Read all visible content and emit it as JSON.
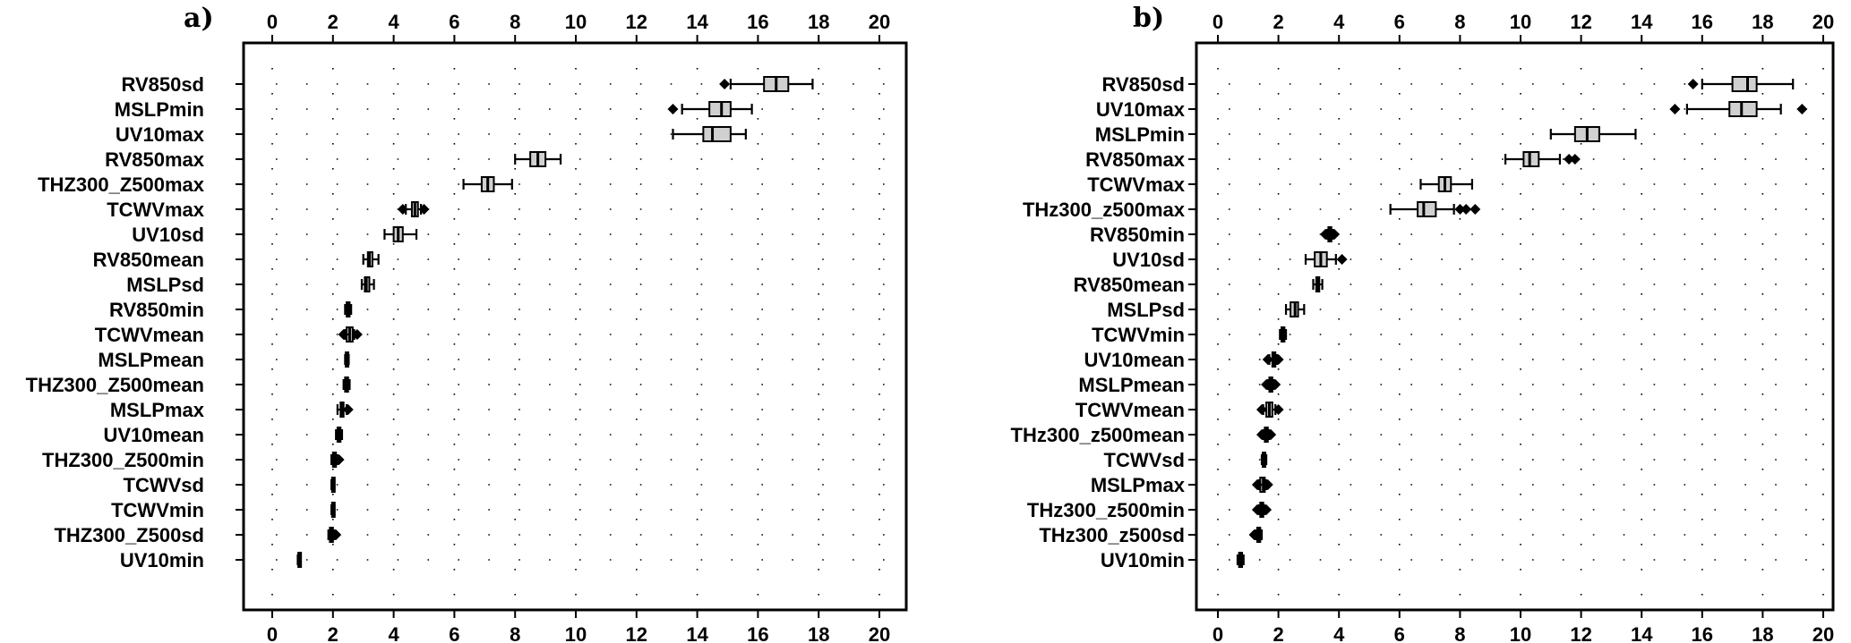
{
  "chart_data": [
    {
      "type": "box",
      "panel_label": "a)",
      "xlim": [
        0,
        20
      ],
      "xticks": [
        "0",
        "2",
        "4",
        "6",
        "8",
        "10",
        "12",
        "14",
        "16",
        "18",
        "20"
      ],
      "grid": "dotted",
      "rows": [
        {
          "label": "RV850sd",
          "box": [
            16.2,
            16.6,
            17.0
          ],
          "whiskers": [
            15.1,
            17.8
          ],
          "outliers": [
            14.9
          ]
        },
        {
          "label": "MSLPmin",
          "box": [
            14.4,
            14.8,
            15.1
          ],
          "whiskers": [
            13.5,
            15.8
          ],
          "outliers": [
            13.2
          ]
        },
        {
          "label": "UV10max",
          "box": [
            14.2,
            14.5,
            15.1
          ],
          "whiskers": [
            13.2,
            15.6
          ],
          "outliers": []
        },
        {
          "label": "RV850max",
          "box": [
            8.5,
            8.75,
            9.0
          ],
          "whiskers": [
            8.0,
            9.5
          ],
          "outliers": []
        },
        {
          "label": "THZ300_Z500max",
          "box": [
            6.9,
            7.1,
            7.3
          ],
          "whiskers": [
            6.3,
            7.9
          ],
          "outliers": []
        },
        {
          "label": "TCWVmax",
          "box": [
            4.6,
            4.7,
            4.8
          ],
          "whiskers": [
            4.4,
            4.9
          ],
          "outliers": [
            4.3,
            5.0
          ]
        },
        {
          "label": "UV10sd",
          "box": [
            4.0,
            4.15,
            4.3
          ],
          "whiskers": [
            3.7,
            4.75
          ],
          "outliers": []
        },
        {
          "label": "RV850mean",
          "box": [
            3.15,
            3.2,
            3.3
          ],
          "whiskers": [
            3.0,
            3.5
          ],
          "outliers": []
        },
        {
          "label": "MSLPsd",
          "box": [
            3.05,
            3.1,
            3.2
          ],
          "whiskers": [
            2.95,
            3.35
          ],
          "outliers": []
        },
        {
          "label": "RV850min",
          "box": [
            2.45,
            2.5,
            2.55
          ],
          "whiskers": [
            2.4,
            2.6
          ],
          "outliers": []
        },
        {
          "label": "TCWVmean",
          "box": [
            2.45,
            2.55,
            2.65
          ],
          "whiskers": [
            2.4,
            2.7
          ],
          "outliers": [
            2.35,
            2.8
          ]
        },
        {
          "label": "MSLPmean",
          "box": [
            2.42,
            2.45,
            2.5
          ],
          "whiskers": [
            2.4,
            2.52
          ],
          "outliers": []
        },
        {
          "label": "THZ300_Z500mean",
          "box": [
            2.4,
            2.45,
            2.5
          ],
          "whiskers": [
            2.35,
            2.55
          ],
          "outliers": []
        },
        {
          "label": "MSLPmax",
          "box": [
            2.25,
            2.3,
            2.35
          ],
          "whiskers": [
            2.15,
            2.45
          ],
          "outliers": [
            2.5
          ]
        },
        {
          "label": "UV10mean",
          "box": [
            2.15,
            2.2,
            2.25
          ],
          "whiskers": [
            2.1,
            2.3
          ],
          "outliers": []
        },
        {
          "label": "THZ300_Z500min",
          "box": [
            2.0,
            2.05,
            2.1
          ],
          "whiskers": [
            1.95,
            2.15
          ],
          "outliers": [
            2.2
          ]
        },
        {
          "label": "TCWVsd",
          "box": [
            1.97,
            2.0,
            2.03
          ],
          "whiskers": [
            1.95,
            2.05
          ],
          "outliers": []
        },
        {
          "label": "TCWVmin",
          "box": [
            1.97,
            2.0,
            2.03
          ],
          "whiskers": [
            1.95,
            2.05
          ],
          "outliers": []
        },
        {
          "label": "THZ300_Z500sd",
          "box": [
            1.9,
            1.95,
            2.0
          ],
          "whiskers": [
            1.85,
            2.05
          ],
          "outliers": [
            2.1
          ]
        },
        {
          "label": "UV10min",
          "box": [
            0.86,
            0.88,
            0.9
          ],
          "whiskers": [
            0.84,
            0.92
          ],
          "outliers": []
        }
      ]
    },
    {
      "type": "box",
      "panel_label": "b)",
      "xlim": [
        0,
        20
      ],
      "xticks": [
        "0",
        "2",
        "4",
        "6",
        "8",
        "10",
        "12",
        "14",
        "16",
        "18",
        "20"
      ],
      "grid": "dotted",
      "rows": [
        {
          "label": "RV850sd",
          "box": [
            17.0,
            17.5,
            17.8
          ],
          "whiskers": [
            16.0,
            19.0
          ],
          "outliers": [
            15.7
          ]
        },
        {
          "label": "UV10max",
          "box": [
            16.9,
            17.3,
            17.8
          ],
          "whiskers": [
            15.5,
            18.6
          ],
          "outliers": [
            15.1,
            19.3
          ]
        },
        {
          "label": "MSLPmin",
          "box": [
            11.8,
            12.2,
            12.6
          ],
          "whiskers": [
            11.0,
            13.8
          ],
          "outliers": []
        },
        {
          "label": "RV850max",
          "box": [
            10.1,
            10.3,
            10.6
          ],
          "whiskers": [
            9.5,
            11.3
          ],
          "outliers": [
            11.6,
            11.8
          ]
        },
        {
          "label": "TCWVmax",
          "box": [
            7.3,
            7.5,
            7.7
          ],
          "whiskers": [
            6.7,
            8.4
          ],
          "outliers": []
        },
        {
          "label": "THz300_z500max",
          "box": [
            6.6,
            6.8,
            7.2
          ],
          "whiskers": [
            5.7,
            7.8
          ],
          "outliers": [
            8.0,
            8.2,
            8.5
          ]
        },
        {
          "label": "RV850min",
          "box": [
            3.65,
            3.7,
            3.75
          ],
          "whiskers": [
            3.6,
            3.8
          ],
          "outliers": [
            3.55,
            3.85
          ]
        },
        {
          "label": "UV10sd",
          "box": [
            3.2,
            3.4,
            3.6
          ],
          "whiskers": [
            2.9,
            3.9
          ],
          "outliers": [
            4.1
          ]
        },
        {
          "label": "RV850mean",
          "box": [
            3.25,
            3.3,
            3.35
          ],
          "whiskers": [
            3.15,
            3.45
          ],
          "outliers": []
        },
        {
          "label": "MSLPsd",
          "box": [
            2.4,
            2.55,
            2.65
          ],
          "whiskers": [
            2.25,
            2.85
          ],
          "outliers": []
        },
        {
          "label": "TCWVmin",
          "box": [
            2.1,
            2.15,
            2.2
          ],
          "whiskers": [
            2.05,
            2.25
          ],
          "outliers": []
        },
        {
          "label": "UV10mean",
          "box": [
            1.8,
            1.85,
            1.9
          ],
          "whiskers": [
            1.7,
            1.95
          ],
          "outliers": [
            1.65,
            2.0
          ]
        },
        {
          "label": "MSLPmean",
          "box": [
            1.7,
            1.75,
            1.8
          ],
          "whiskers": [
            1.65,
            1.85
          ],
          "outliers": [
            1.6,
            1.9
          ]
        },
        {
          "label": "TCWVmean",
          "box": [
            1.6,
            1.7,
            1.8
          ],
          "whiskers": [
            1.5,
            1.9
          ],
          "outliers": [
            1.45,
            2.0
          ]
        },
        {
          "label": "THz300_z500mean",
          "box": [
            1.55,
            1.6,
            1.65
          ],
          "whiskers": [
            1.5,
            1.7
          ],
          "outliers": [
            1.45,
            1.75
          ]
        },
        {
          "label": "TCWVsd",
          "box": [
            1.48,
            1.5,
            1.55
          ],
          "whiskers": [
            1.45,
            1.6
          ],
          "outliers": []
        },
        {
          "label": "MSLPmax",
          "box": [
            1.4,
            1.5,
            1.55
          ],
          "whiskers": [
            1.35,
            1.6
          ],
          "outliers": [
            1.3,
            1.65
          ]
        },
        {
          "label": "THz300_z500min",
          "box": [
            1.4,
            1.45,
            1.5
          ],
          "whiskers": [
            1.35,
            1.55
          ],
          "outliers": [
            1.3,
            1.6
          ]
        },
        {
          "label": "THz300_z500sd",
          "box": [
            1.3,
            1.35,
            1.4
          ],
          "whiskers": [
            1.25,
            1.45
          ],
          "outliers": [
            1.2
          ]
        },
        {
          "label": "UV10min",
          "box": [
            0.7,
            0.75,
            0.8
          ],
          "whiskers": [
            0.65,
            0.85
          ],
          "outliers": []
        }
      ]
    }
  ],
  "colors": {
    "box_fill": "#d0d0d0",
    "stroke": "#000000",
    "outlier": "#000000"
  }
}
